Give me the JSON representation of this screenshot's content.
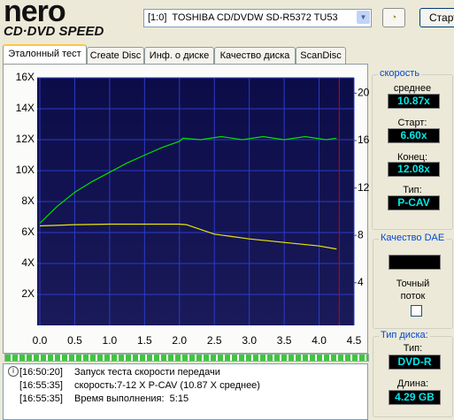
{
  "app": {
    "logo_top": "nero",
    "logo_bottom": "CD·DVD SPEED",
    "drive": "[1:0]  TOSHIBA CD/DVDW SD-R5372 TU53",
    "start_button": "Старт"
  },
  "tabs": [
    "Эталонный тест",
    "Create Disc",
    "Инф. о диске",
    "Качество диска",
    "ScanDisc"
  ],
  "chart_data": {
    "type": "line",
    "xlim": [
      0,
      4.5
    ],
    "xticks": [
      {
        "value": 0,
        "label": "0.0"
      },
      0.5,
      {
        "value": 1,
        "label": "1.0"
      },
      1.5,
      {
        "value": 2,
        "label": "2.0"
      },
      2.5,
      {
        "value": 3,
        "label": "3.0"
      },
      3.5,
      {
        "value": 4,
        "label": "4.0"
      },
      4.5
    ],
    "ylim": [
      0,
      16
    ],
    "yticks": [
      {
        "value": 2,
        "label": "2X"
      },
      {
        "value": 4,
        "label": "4X"
      },
      {
        "value": 6,
        "label": "6X"
      },
      {
        "value": 8,
        "label": "8X"
      },
      {
        "value": 10,
        "label": "10X"
      },
      {
        "value": 12,
        "label": "12X"
      },
      {
        "value": 14,
        "label": "14X"
      },
      {
        "value": 16,
        "label": "16X"
      }
    ],
    "y2lim": [
      0.4,
      21.3
    ],
    "y2ticks": [
      4,
      8,
      12,
      16,
      20
    ],
    "grid": true,
    "series": [
      {
        "color": "#00e000",
        "x": [
          0,
          0.25,
          0.5,
          0.75,
          1.0,
          1.25,
          1.5,
          1.75,
          2.0,
          2.05,
          2.3,
          2.6,
          2.9,
          3.2,
          3.5,
          3.8,
          4.1,
          4.25
        ],
        "values": [
          6.6,
          7.7,
          8.6,
          9.3,
          9.9,
          10.5,
          11.0,
          11.5,
          11.9,
          12.1,
          12.0,
          12.2,
          12.0,
          12.2,
          12.0,
          12.2,
          12.0,
          12.1
        ]
      },
      {
        "color": "#e8e800",
        "axis": "y2",
        "x": [
          0,
          0.5,
          1.0,
          1.5,
          2.0,
          2.1,
          2.5,
          3.0,
          3.5,
          4.0,
          4.25
        ],
        "values": [
          8.8,
          8.9,
          8.95,
          8.95,
          8.95,
          8.9,
          8.1,
          7.7,
          7.4,
          7.1,
          6.85
        ]
      }
    ],
    "end_marker": 4.29,
    "end_marker_color": "#c00000"
  },
  "speed_panel": {
    "title": "скорость",
    "average_label": "среднее",
    "average": "10.87x",
    "start_label": "Старт:",
    "start": "6.60x",
    "end_label": "Конец:",
    "end": "12.08x",
    "type_label": "Тип:",
    "type": "P-CAV"
  },
  "dae_panel": {
    "title": "Качество DAE",
    "accurate_stream": "Точный поток"
  },
  "disc_panel": {
    "title": "Тип диска:",
    "type_label": "Тип:",
    "type": "DVD-R",
    "length_label": "Длина:",
    "length": "4.29 GB"
  },
  "log": [
    {
      "time": "[16:50:20]",
      "message": "Запуск теста скорости передачи"
    },
    {
      "time": "[16:55:35]",
      "message": "скорость:7-12 X P-CAV (10.87 X среднее)"
    },
    {
      "time": "[16:55:35]",
      "message": "Время выполнения:  5:15"
    }
  ]
}
